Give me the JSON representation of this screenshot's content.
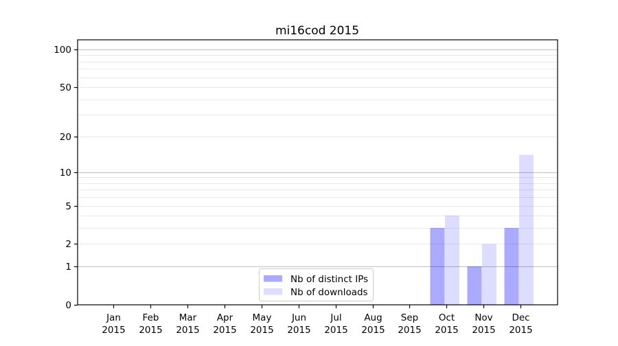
{
  "chart_data": {
    "type": "bar",
    "title": "mi16cod 2015",
    "xlabel": "",
    "ylabel": "",
    "categories": [
      "Jan",
      "Feb",
      "Mar",
      "Apr",
      "May",
      "Jun",
      "Jul",
      "Aug",
      "Sep",
      "Oct",
      "Nov",
      "Dec"
    ],
    "x_year": "2015",
    "series": [
      {
        "name": "Nb of distinct IPs",
        "color": "#aaaaff",
        "values": [
          0,
          0,
          0,
          0,
          0,
          0,
          0,
          0,
          0,
          3,
          1,
          3
        ]
      },
      {
        "name": "Nb of downloads",
        "color": "#ddddff",
        "values": [
          0,
          0,
          0,
          0,
          0,
          0,
          0,
          0,
          0,
          4,
          2,
          14
        ]
      }
    ],
    "yscale": "log10(1+y)",
    "yticks": [
      0,
      1,
      2,
      5,
      10,
      20,
      50,
      100
    ],
    "ytick_labels": [
      "0",
      "1",
      "2",
      "5",
      "10",
      "20",
      "50",
      "100"
    ],
    "ylim": [
      0,
      119
    ],
    "grid": "horizontal; minor lines light, darker lines at 1, 10, 100",
    "grid_major": [
      1,
      10,
      100
    ],
    "legend": {
      "position": "bottom-center-inside",
      "entries": [
        "Nb of distinct IPs",
        "Nb of downloads"
      ]
    },
    "colors": {
      "background": "#ffffff",
      "axis": "#000000",
      "text": "#000000",
      "legend_border": "#cccccc"
    }
  }
}
